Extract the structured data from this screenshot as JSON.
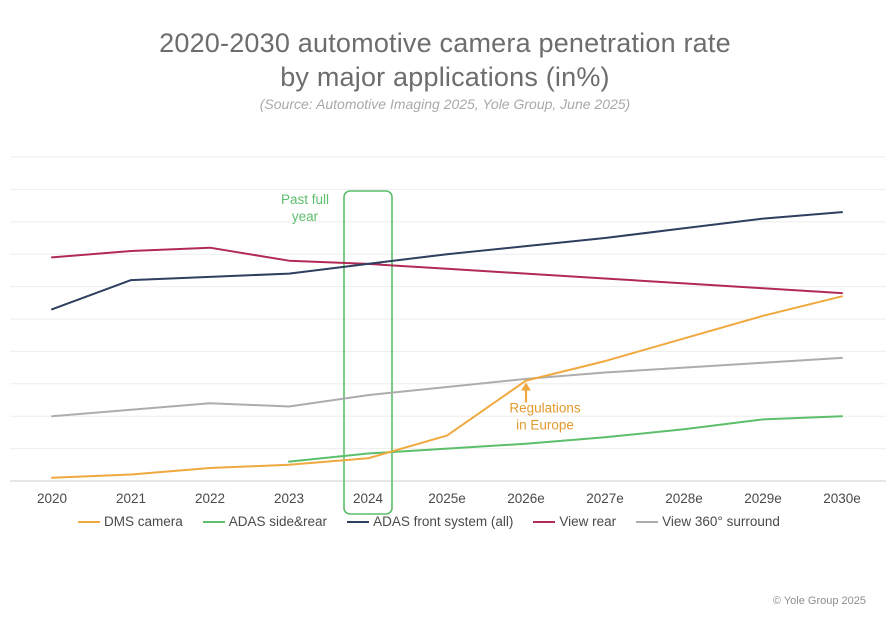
{
  "title_line_1": "2020-2030 automotive camera penetration rate",
  "title_line_2": "by major applications (in%)",
  "subtitle": "(Source: Automotive Imaging 2025, Yole Group, June 2025)",
  "copyright": "© Yole Group 2025",
  "chart_data": {
    "type": "line",
    "title": "2020-2030 automotive camera penetration rate by major applications (in%)",
    "subtitle": "(Source: Automotive Imaging 2025, Yole Group, June 2025)",
    "x": [
      "2020",
      "2021",
      "2022",
      "2023",
      "2024",
      "2025e",
      "2026e",
      "2027e",
      "2028e",
      "2029e",
      "2030e"
    ],
    "ylim": [
      0,
      100
    ],
    "y_axis_labels_shown": false,
    "grid": true,
    "legend_position": "bottom",
    "series": [
      {
        "name": "DMS camera",
        "color": "#f0a93e",
        "values": [
          1,
          2,
          4,
          5,
          7,
          14,
          31,
          37,
          44,
          51,
          57
        ]
      },
      {
        "name": "ADAS side&rear",
        "color": "#5cbf6b",
        "values": [
          null,
          null,
          null,
          6,
          8.5,
          10,
          11.5,
          13.5,
          16,
          19,
          20
        ]
      },
      {
        "name": "ADAS front system (all)",
        "color": "#2f3f5f",
        "values": [
          53,
          62,
          63,
          64,
          67,
          70,
          72.5,
          75,
          78,
          81,
          83
        ]
      },
      {
        "name": "View rear",
        "color": "#b12a55",
        "values": [
          69,
          71,
          72,
          68,
          67,
          65.5,
          64,
          62.5,
          61,
          59.5,
          58
        ]
      },
      {
        "name": "View 360° surround",
        "color": "#adadad",
        "values": [
          20,
          22,
          24,
          23,
          26.5,
          29,
          31.5,
          33.5,
          35,
          36.5,
          38
        ]
      }
    ],
    "highlight": {
      "category": "2024",
      "label": "Past full year",
      "label_line_1": "Past full",
      "label_line_2": "year",
      "color": "#5cbf6b"
    },
    "annotation": {
      "label": "Regulations in Europe",
      "label_line_1": "Regulations",
      "label_line_2": "in Europe",
      "category": "2026e",
      "series": "DMS camera",
      "color": "#f0a93e"
    }
  }
}
